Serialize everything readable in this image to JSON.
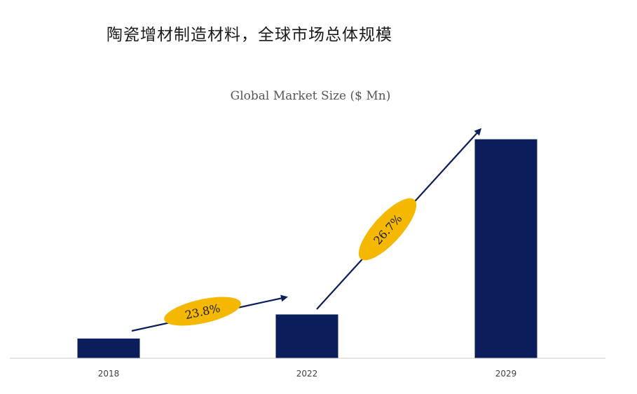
{
  "page_heading": "陶瓷增材制造材料，全球市场总体规模",
  "chart_data": {
    "type": "bar",
    "title": "Global Market Size ($ Mn)",
    "categories": [
      "2018",
      "2022",
      "2029"
    ],
    "values": [
      9,
      20,
      100
    ],
    "xlabel": "",
    "ylabel": "",
    "ylim": [
      0,
      105
    ],
    "grid": false,
    "legend": "none",
    "bar_color": "#0b1e5b",
    "arrow_color": "#0b1e5b",
    "annotation_color": "#f5b800",
    "annotations": [
      {
        "label": "23.8%",
        "from": "2018",
        "to": "2022"
      },
      {
        "label": "26.7%",
        "from": "2022",
        "to": "2029"
      }
    ]
  }
}
